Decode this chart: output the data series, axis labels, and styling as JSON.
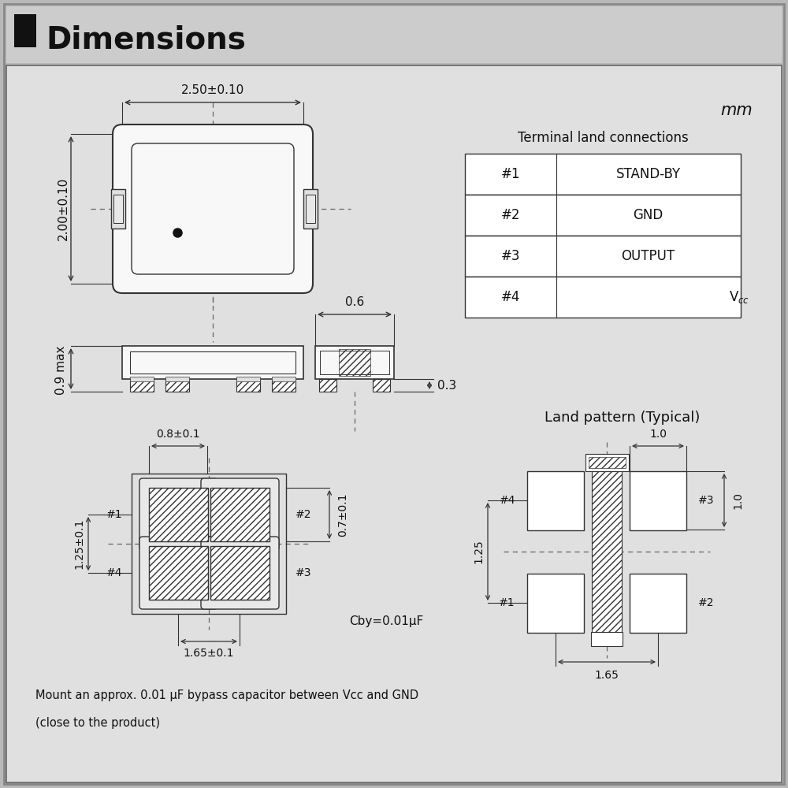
{
  "title": "Dimensions",
  "line_color": "#333333",
  "table_headers": [
    "#1",
    "#2",
    "#3",
    "#4"
  ],
  "table_values": [
    "STAND-BY",
    "GND",
    "OUTPUT",
    "Vcc"
  ],
  "unit_text": "mm",
  "land_title": "Land pattern (Typical)",
  "terminal_title": "Terminal land connections",
  "dim_top": "2.50±0.10",
  "dim_left": "2.00±0.10",
  "dim_height": "0.9 max",
  "dim_side_w": "0.6",
  "dim_side_h": "0.3",
  "dim_pad_w": "0.8±0.1",
  "dim_pad_h": "0.7±0.1",
  "dim_pad_span": "1.65±0.1",
  "dim_pad_vert": "1.25±0.1",
  "dim_land_w": "1.65",
  "dim_land_h": "1.25",
  "dim_land_pad_w": "1.0",
  "dim_land_pad_h": "1.0",
  "footer_line1": "Mount an approx. 0.01 μF bypass capacitor between Vcc and GND",
  "footer_line2": "(close to the product)",
  "cby_label": "Cby=0.01μF",
  "bg_header": "#cccccc",
  "bg_content": "#e0e0e0",
  "bg_outer": "#b8b8b8"
}
